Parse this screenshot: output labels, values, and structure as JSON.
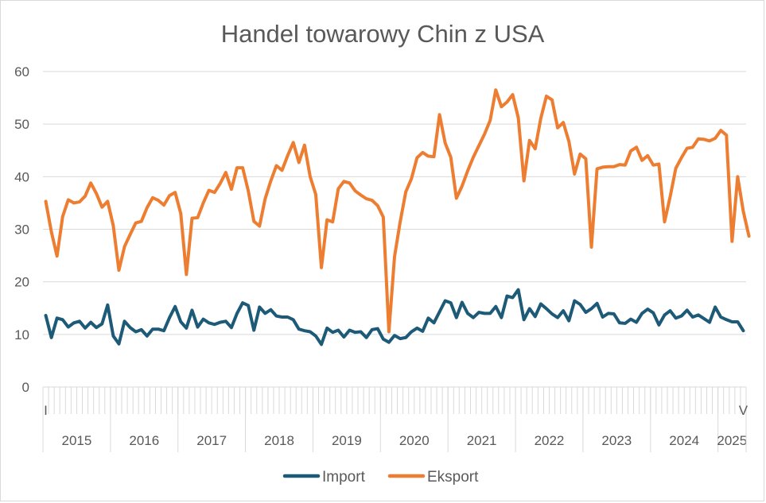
{
  "chart_data": {
    "type": "line",
    "title": "Handel towarowy Chin z USA",
    "xlabel": "",
    "ylabel": "",
    "ylim": [
      0,
      60
    ],
    "yticks": [
      "0",
      "10",
      "20",
      "30",
      "40",
      "50",
      "60"
    ],
    "month_start_label": "I",
    "month_end_label": "V",
    "years": [
      "2015",
      "2016",
      "2017",
      "2018",
      "2019",
      "2020",
      "2021",
      "2022",
      "2023",
      "2024",
      "2025"
    ],
    "period": "2015-01 to 2025-05 (monthly)",
    "legend_position": "bottom",
    "series": [
      {
        "name": "Import",
        "color": "#1d5a78",
        "values": [
          13.6,
          9.4,
          13.1,
          12.8,
          11.4,
          12.2,
          12.5,
          11.2,
          12.3,
          11.3,
          12.0,
          15.6,
          9.7,
          8.2,
          12.5,
          11.3,
          10.5,
          10.9,
          9.7,
          11.0,
          11.0,
          10.7,
          13.2,
          15.3,
          12.4,
          11.2,
          14.6,
          11.4,
          12.9,
          12.2,
          11.9,
          12.3,
          12.5,
          11.3,
          14.0,
          16.0,
          15.5,
          10.8,
          15.2,
          14.0,
          14.7,
          13.5,
          13.3,
          13.3,
          12.8,
          11.0,
          10.7,
          10.5,
          9.7,
          8.1,
          11.2,
          10.4,
          10.8,
          9.5,
          10.8,
          10.4,
          10.5,
          9.4,
          10.9,
          11.1,
          9.1,
          8.5,
          9.8,
          9.2,
          9.4,
          10.5,
          11.2,
          10.6,
          13.1,
          12.2,
          14.3,
          16.4,
          16.0,
          13.2,
          16.1,
          14.0,
          13.2,
          14.2,
          14.0,
          14.0,
          15.3,
          13.2,
          17.3,
          17.0,
          18.5,
          12.8,
          14.9,
          13.4,
          15.8,
          14.9,
          13.9,
          13.2,
          14.5,
          12.6,
          16.4,
          15.7,
          14.2,
          14.9,
          15.9,
          13.3,
          14.0,
          13.9,
          12.2,
          12.1,
          12.9,
          12.3,
          14.0,
          14.8,
          14.1,
          11.8,
          13.7,
          14.5,
          13.1,
          13.5,
          14.6,
          13.3,
          13.7,
          13.0,
          12.3,
          15.2,
          13.3,
          12.8,
          12.4,
          12.4,
          10.7
        ]
      },
      {
        "name": "Eksport",
        "color": "#ed7d31",
        "values": [
          35.3,
          29.5,
          24.9,
          32.4,
          35.6,
          35.0,
          35.2,
          36.3,
          38.8,
          36.8,
          34.2,
          35.3,
          30.7,
          22.2,
          26.7,
          29.0,
          31.2,
          31.5,
          34.1,
          36.0,
          35.5,
          34.6,
          36.4,
          37.0,
          33.0,
          21.4,
          32.1,
          32.2,
          35.0,
          37.4,
          37.0,
          38.7,
          40.8,
          37.6,
          41.7,
          41.7,
          37.3,
          31.5,
          30.6,
          35.8,
          39.2,
          42.1,
          41.2,
          44.0,
          46.5,
          42.7,
          46.0,
          40.0,
          36.6,
          22.7,
          31.8,
          31.4,
          37.7,
          39.1,
          38.8,
          37.3,
          36.5,
          35.8,
          35.5,
          34.5,
          32.3,
          10.5,
          24.8,
          31.4,
          37.1,
          39.6,
          43.6,
          44.6,
          43.9,
          43.8,
          51.8,
          46.4,
          43.7,
          35.9,
          38.2,
          41.1,
          43.7,
          45.9,
          48.1,
          50.7,
          56.5,
          53.3,
          54.2,
          55.6,
          51.2,
          39.2,
          46.9,
          45.3,
          51.1,
          55.3,
          54.6,
          49.3,
          50.3,
          46.7,
          40.5,
          44.3,
          43.4,
          26.6,
          41.5,
          41.8,
          41.9,
          41.9,
          42.3,
          42.2,
          44.9,
          45.6,
          43.1,
          44.0,
          42.2,
          42.4,
          31.4,
          36.2,
          41.6,
          43.6,
          45.4,
          45.6,
          47.2,
          47.1,
          46.8,
          47.3,
          48.8,
          47.9,
          27.7,
          40.0,
          33.4,
          28.7
        ]
      }
    ]
  }
}
